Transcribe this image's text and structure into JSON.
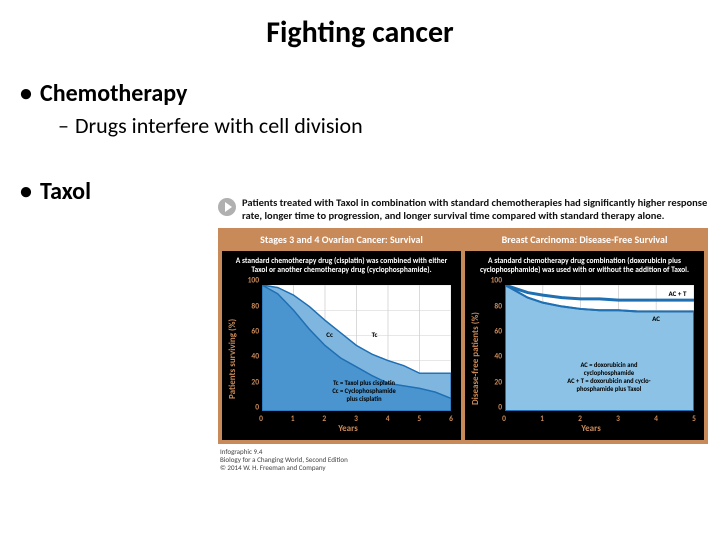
{
  "title": "Fighting cancer",
  "bullets": {
    "chemo": "Chemotherapy",
    "chemo_sub": "Drugs interfere with cell division",
    "taxol": "Taxol"
  },
  "callout": "Patients treated with Taxol in combination with standard chemotherapies had significantly higher response rate, longer time to progression, and longer survival time compared with standard therapy alone.",
  "panel_titles": {
    "left": "Stages 3 and 4 Ovarian Cancer: Survival",
    "right": "Breast Carcinoma: Disease-Free Survival"
  },
  "desc": {
    "left": "A standard chemotherapy drug (cisplatin) was combined with either Taxol or another chemotherapy drug (cyclophosphamide).",
    "right": "A standard chemotherapy drug combination (doxorubicin plus cyclophosphamide) was used with or without the addition of Taxol."
  },
  "axes": {
    "ylabel_left": "Patients surviving (%)",
    "ylabel_right": "Disease-free patients (%)",
    "xlabel": "Years",
    "ylim": [
      0,
      100
    ],
    "yticks": [
      0,
      20,
      40,
      60,
      80,
      100
    ],
    "left": {
      "xlim": [
        0,
        6
      ],
      "xticks": [
        0,
        1,
        2,
        3,
        4,
        5,
        6
      ]
    },
    "right": {
      "xlim": [
        0,
        5
      ],
      "xticks": [
        0,
        1,
        2,
        3,
        4,
        5
      ]
    }
  },
  "colors": {
    "panel_bg": "#c98a5a",
    "chart_bg": "#ffffff",
    "axis_text": "#c98a5a",
    "plot_border": "#000000",
    "gridline": "#cfcfcf",
    "series_tc": {
      "stroke": "#1f6fb3",
      "fill": "#7fb6e0"
    },
    "series_cc": {
      "stroke": "#1f6fb3",
      "fill": "#4a94cf"
    },
    "series_act": {
      "stroke": "#1f6fb3",
      "fill": "none",
      "width": 3
    },
    "series_ac": {
      "stroke": "#1f6fb3",
      "fill": "#8cc2e6",
      "width": 2
    }
  },
  "series": {
    "left_tc": {
      "label": "Tc",
      "points": [
        [
          0,
          100
        ],
        [
          0.5,
          98
        ],
        [
          1,
          92
        ],
        [
          1.5,
          83
        ],
        [
          2,
          72
        ],
        [
          2.5,
          62
        ],
        [
          3,
          52
        ],
        [
          3.5,
          45
        ],
        [
          4,
          40
        ],
        [
          4.5,
          36
        ],
        [
          5,
          30
        ],
        [
          5.5,
          30
        ],
        [
          6,
          30
        ]
      ]
    },
    "left_cc": {
      "label": "Cc",
      "points": [
        [
          0,
          100
        ],
        [
          0.5,
          93
        ],
        [
          1,
          80
        ],
        [
          1.5,
          65
        ],
        [
          2,
          52
        ],
        [
          2.5,
          42
        ],
        [
          3,
          35
        ],
        [
          3.5,
          28
        ],
        [
          4,
          22
        ],
        [
          4.5,
          20
        ],
        [
          5,
          18
        ],
        [
          5.5,
          15
        ],
        [
          6,
          10
        ]
      ]
    },
    "right_act": {
      "label": "AC + T",
      "points": [
        [
          0,
          100
        ],
        [
          0.3,
          97
        ],
        [
          0.6,
          94
        ],
        [
          1,
          92
        ],
        [
          1.5,
          90
        ],
        [
          2,
          89
        ],
        [
          2.5,
          89
        ],
        [
          3,
          88
        ],
        [
          3.5,
          88
        ],
        [
          4,
          88
        ],
        [
          4.5,
          88
        ],
        [
          5,
          88
        ]
      ]
    },
    "right_ac": {
      "label": "AC",
      "points": [
        [
          0,
          100
        ],
        [
          0.3,
          95
        ],
        [
          0.6,
          90
        ],
        [
          1,
          86
        ],
        [
          1.5,
          83
        ],
        [
          2,
          81
        ],
        [
          2.5,
          80
        ],
        [
          3,
          80
        ],
        [
          3.5,
          79
        ],
        [
          4,
          79
        ],
        [
          4.5,
          79
        ],
        [
          5,
          79
        ]
      ]
    }
  },
  "chart_annotations": {
    "left": {
      "tc_label": "Tc",
      "cc_label": "Cc",
      "key": "Tc = Taxol plus cisplatin\nCc = Cyclophosphamide\n        plus cisplatin"
    },
    "right": {
      "act_label": "AC + T",
      "ac_label": "AC",
      "key": "AC = doxorubicin and\n        cyclophosphamide\nAC + T = doxorubicin and cyclo-\n        phosphamide plus Taxol"
    }
  },
  "credit": {
    "line1": "Infographic 9.4",
    "line2": "Biology for a Changing World, Second Edition",
    "line3": "© 2014 W. H. Freeman and Company"
  }
}
